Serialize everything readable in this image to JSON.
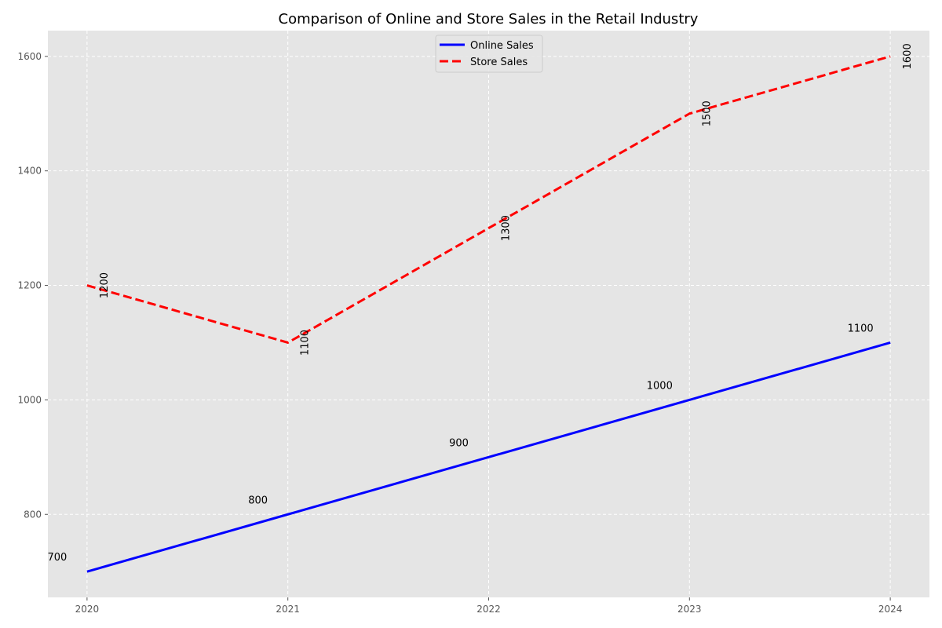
{
  "chart_data": {
    "type": "line",
    "title": "Comparison of Online and Store Sales in the Retail Industry",
    "xlabel": "",
    "ylabel": "",
    "x": [
      2020,
      2021,
      2022,
      2023,
      2024
    ],
    "xlim": [
      2019.805,
      2024.195
    ],
    "ylim": [
      655,
      1645
    ],
    "yticks": [
      800,
      1000,
      1200,
      1400,
      1600
    ],
    "grid": true,
    "legend_position": "top-center",
    "background": "#e5e5e5",
    "series": [
      {
        "name": "Online Sales",
        "values": [
          700,
          800,
          900,
          1000,
          1100
        ],
        "color": "#0000ff",
        "style": "solid",
        "label_rotation": 0
      },
      {
        "name": "Store Sales",
        "values": [
          1200,
          1100,
          1300,
          1500,
          1600
        ],
        "color": "#ff0000",
        "style": "dashed",
        "label_rotation": -90
      }
    ]
  }
}
